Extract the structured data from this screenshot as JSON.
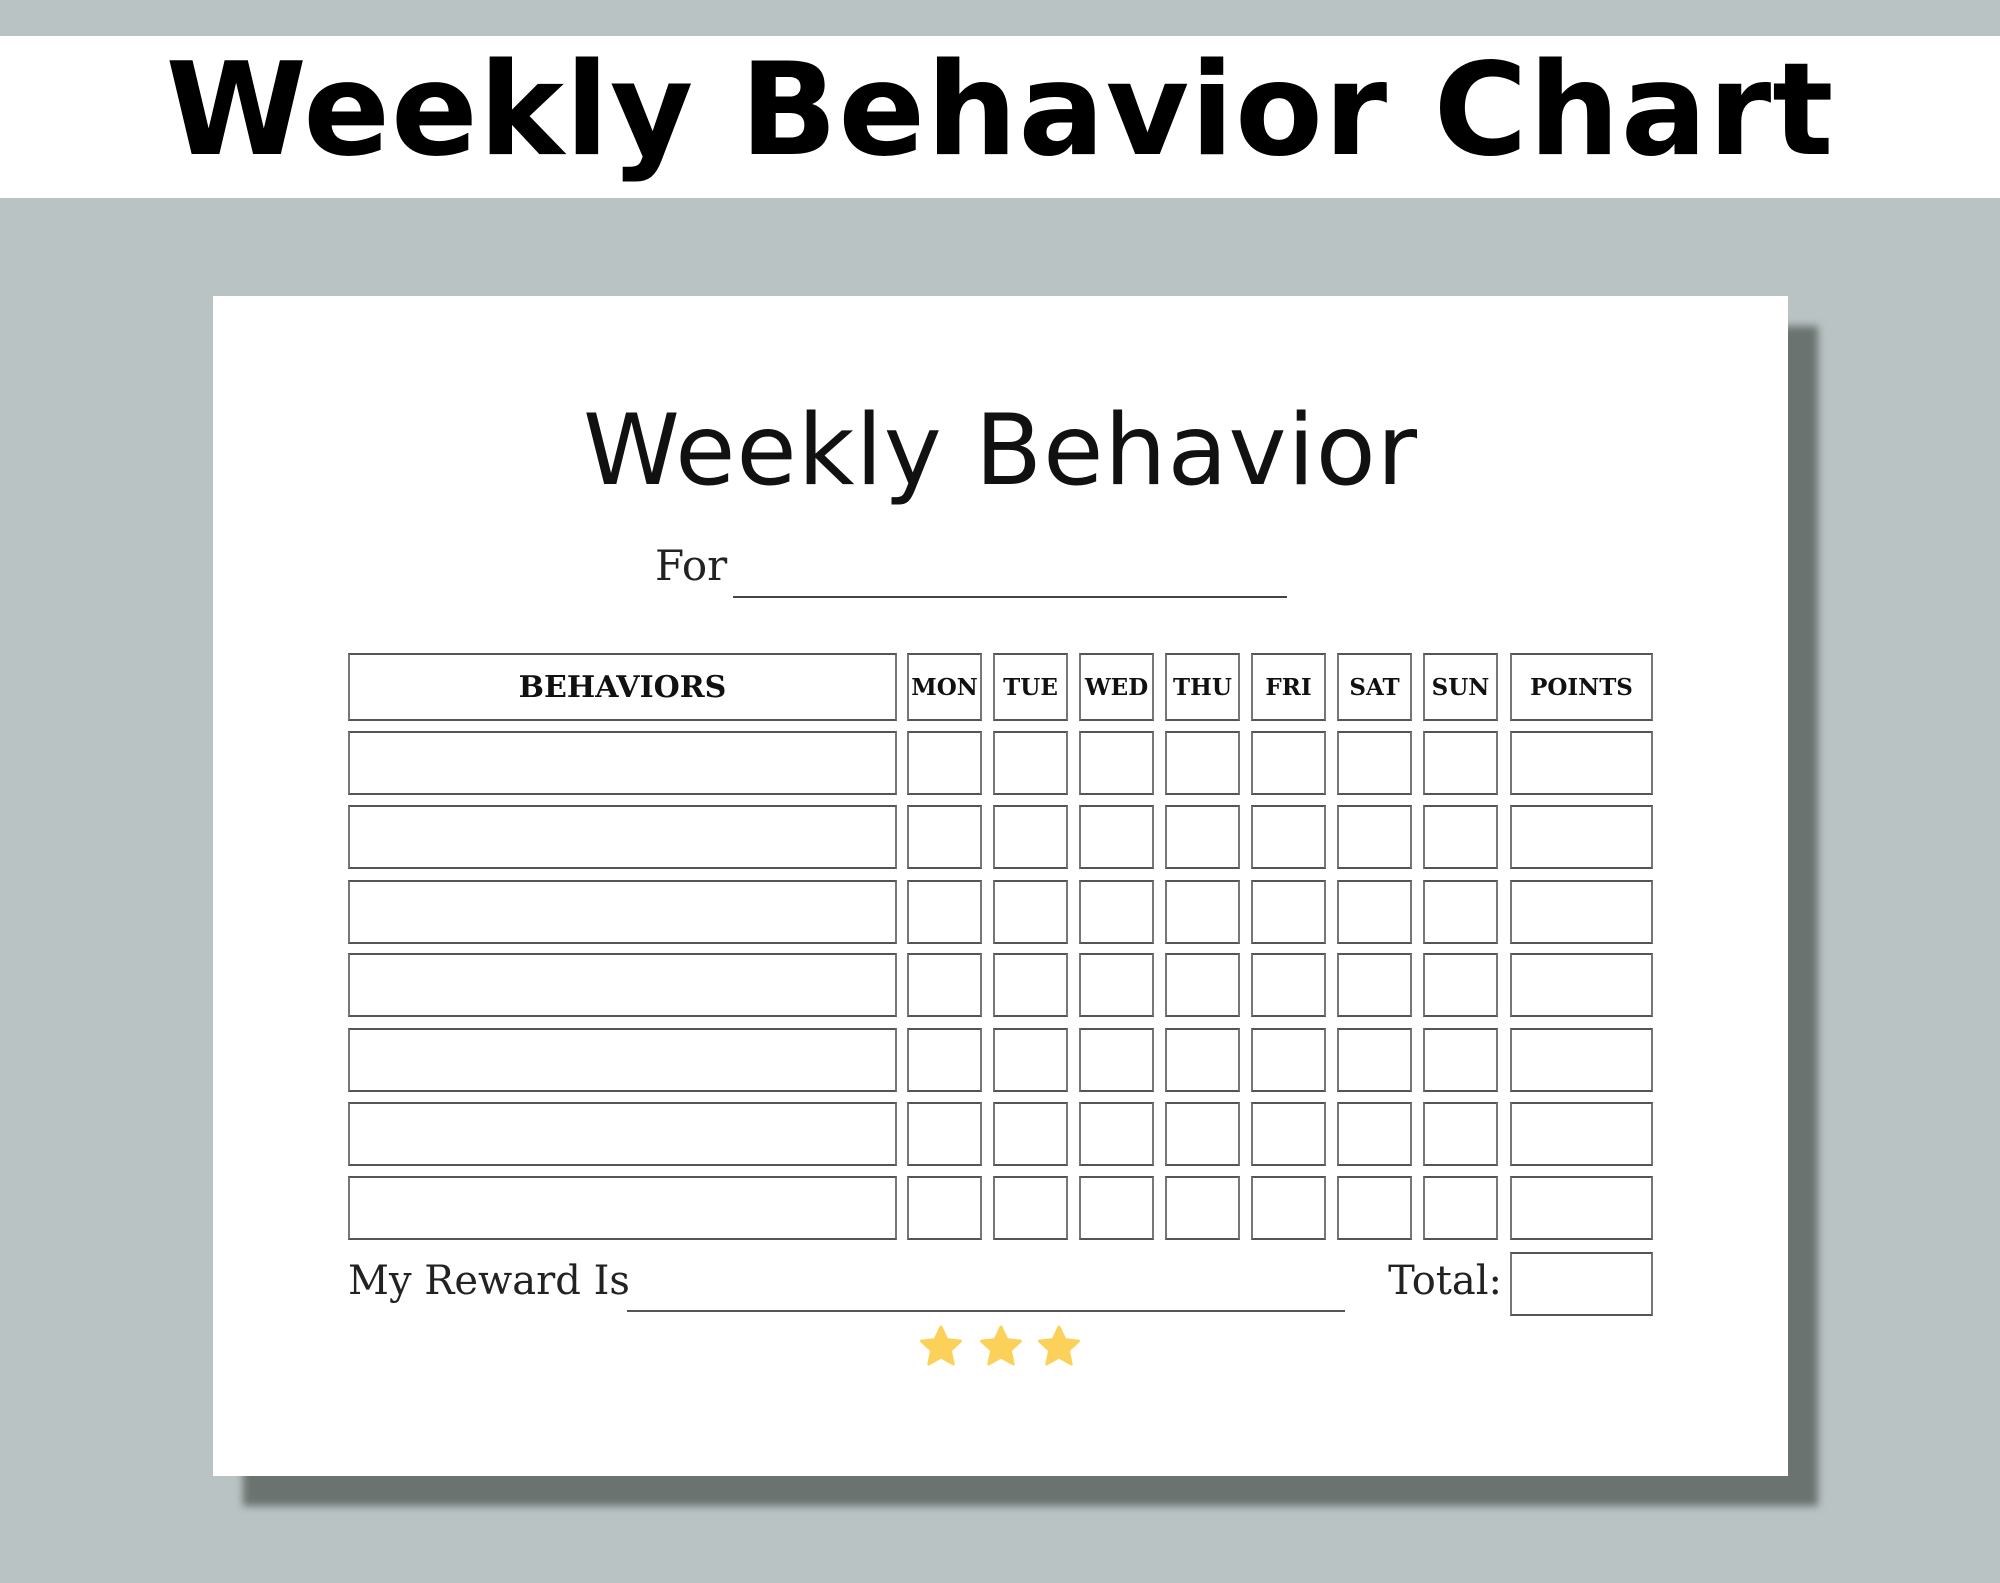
{
  "banner": {
    "title": "Weekly Behavior Chart"
  },
  "sheet": {
    "title": "Weekly Behavior",
    "for_label": "For",
    "table": {
      "behaviors_header": "BEHAVIORS",
      "days": [
        "MON",
        "TUE",
        "WED",
        "THU",
        "FRI",
        "SAT",
        "SUN"
      ],
      "points_header": "POINTS",
      "row_count": 7
    },
    "reward_label": "My Reward Is",
    "total_label": "Total:",
    "stars": {
      "count": 3,
      "color": "#fcd15a",
      "icon": "star-icon"
    }
  },
  "colors": {
    "background": "#b9c3c3",
    "shadow": "#6b7370"
  }
}
